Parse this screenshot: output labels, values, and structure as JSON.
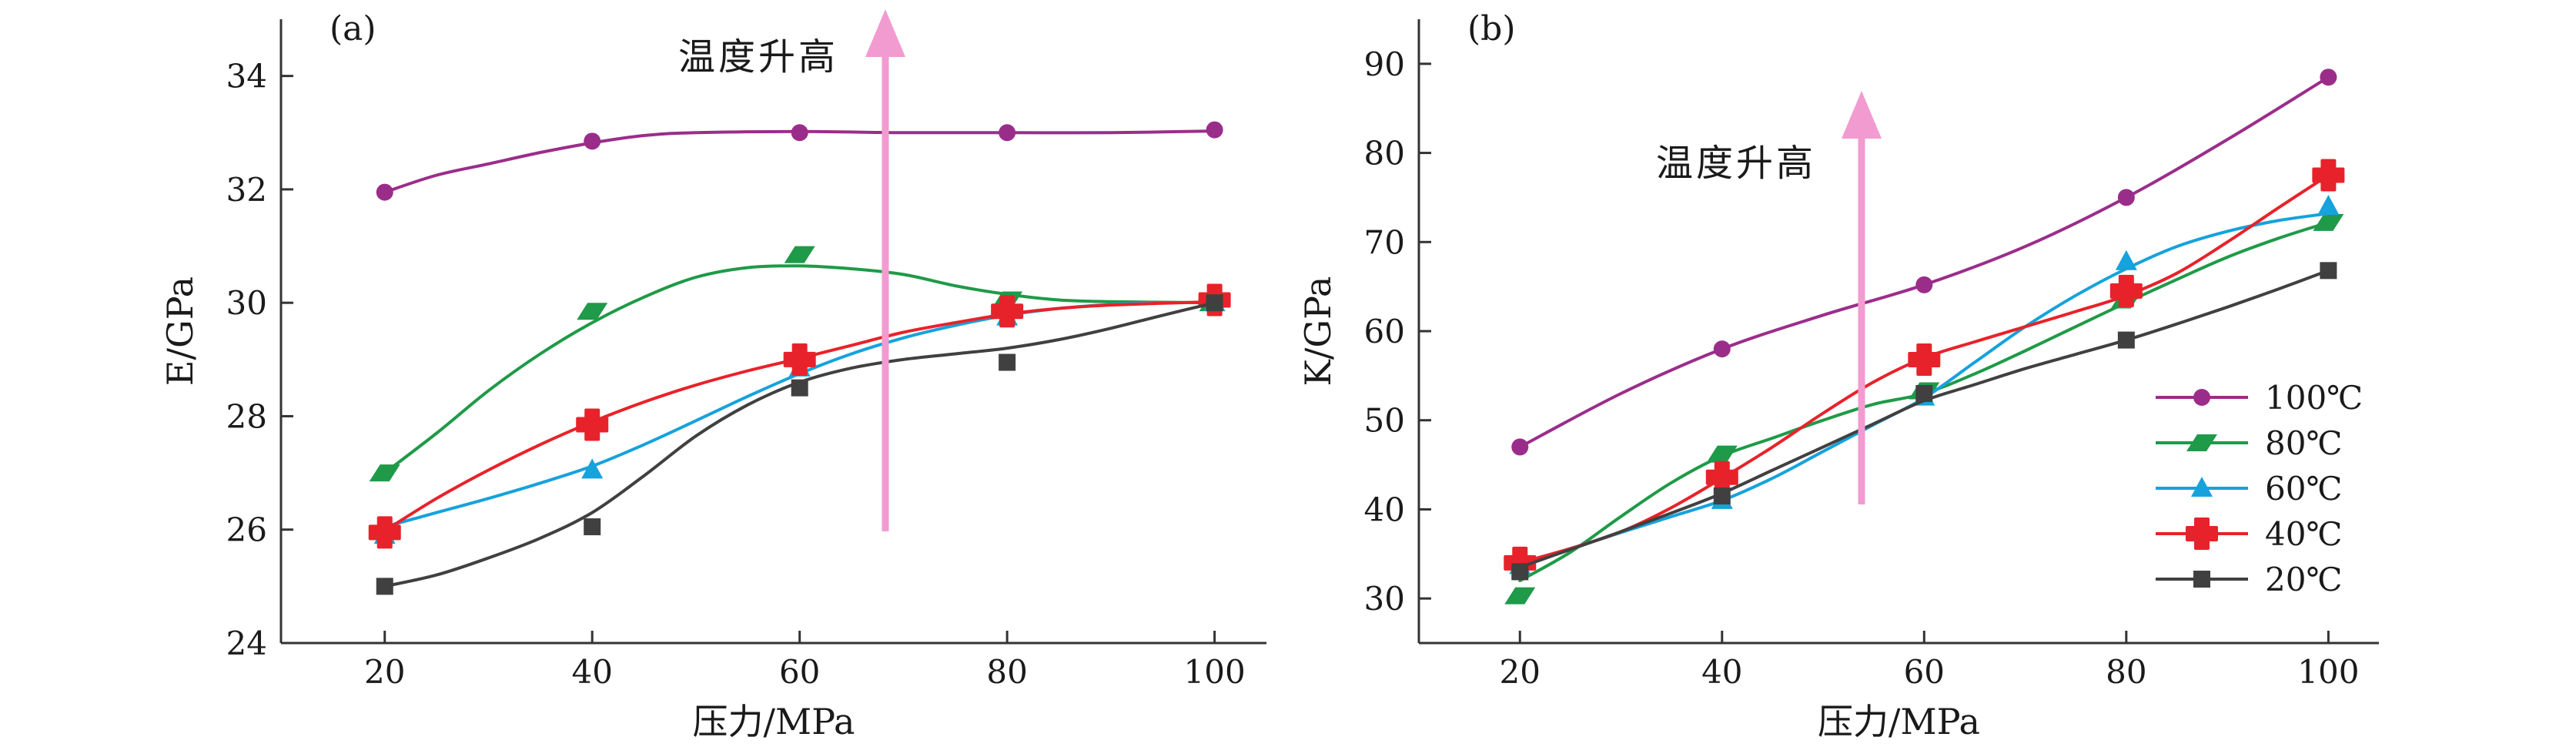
{
  "chart_data": [
    {
      "type": "line",
      "panel_label": "(a)",
      "xlabel": "压力/MPa",
      "ylabel": "E/GPa",
      "xlim": [
        10,
        105
      ],
      "ylim": [
        24,
        35
      ],
      "xticks": [
        20,
        40,
        60,
        80,
        100
      ],
      "yticks": [
        24,
        26,
        28,
        30,
        32,
        34
      ],
      "grid": false,
      "annotation": "温度升高",
      "series": [
        {
          "name": "100℃",
          "color": "#9b2d8a",
          "marker": "circle",
          "points": [
            [
              20,
              31.95
            ],
            [
              40,
              32.85
            ],
            [
              60,
              33.0
            ],
            [
              80,
              33.0
            ],
            [
              100,
              33.05
            ]
          ],
          "fit": [
            [
              20,
              31.95
            ],
            [
              25,
              32.25
            ],
            [
              30,
              32.45
            ],
            [
              35,
              32.65
            ],
            [
              40,
              32.82
            ],
            [
              45,
              32.95
            ],
            [
              50,
              33.0
            ],
            [
              60,
              33.02
            ],
            [
              70,
              33.0
            ],
            [
              80,
              33.0
            ],
            [
              90,
              33.0
            ],
            [
              100,
              33.03
            ]
          ]
        },
        {
          "name": "80℃",
          "color": "#1f9a48",
          "marker": "parallelogram",
          "points": [
            [
              20,
              27.0
            ],
            [
              40,
              29.85
            ],
            [
              60,
              30.85
            ],
            [
              80,
              30.05
            ],
            [
              100,
              30.0
            ]
          ],
          "fit": [
            [
              20,
              27.0
            ],
            [
              25,
              27.7
            ],
            [
              30,
              28.45
            ],
            [
              35,
              29.1
            ],
            [
              40,
              29.65
            ],
            [
              45,
              30.1
            ],
            [
              50,
              30.45
            ],
            [
              55,
              30.62
            ],
            [
              60,
              30.65
            ],
            [
              65,
              30.6
            ],
            [
              70,
              30.5
            ],
            [
              75,
              30.3
            ],
            [
              80,
              30.15
            ],
            [
              85,
              30.05
            ],
            [
              90,
              30.02
            ],
            [
              100,
              30.0
            ]
          ]
        },
        {
          "name": "60℃",
          "color": "#16a2dc",
          "marker": "triangle",
          "points": [
            [
              20,
              25.9
            ],
            [
              40,
              27.05
            ],
            [
              60,
              28.85
            ],
            [
              80,
              29.75
            ],
            [
              100,
              30.0
            ]
          ],
          "fit": [
            [
              20,
              26.05
            ],
            [
              25,
              26.3
            ],
            [
              30,
              26.55
            ],
            [
              35,
              26.82
            ],
            [
              40,
              27.12
            ],
            [
              45,
              27.5
            ],
            [
              50,
              27.92
            ],
            [
              55,
              28.35
            ],
            [
              60,
              28.75
            ],
            [
              65,
              29.1
            ],
            [
              70,
              29.38
            ],
            [
              75,
              29.6
            ],
            [
              80,
              29.78
            ],
            [
              85,
              29.9
            ],
            [
              90,
              29.97
            ],
            [
              94,
              30.0
            ]
          ]
        },
        {
          "name": "40℃",
          "color": "#e8222a",
          "marker": "cross",
          "points": [
            [
              20,
              25.95
            ],
            [
              40,
              27.85
            ],
            [
              60,
              29.0
            ],
            [
              80,
              29.85
            ],
            [
              100,
              30.05
            ]
          ],
          "fit": [
            [
              20,
              25.98
            ],
            [
              25,
              26.55
            ],
            [
              30,
              27.05
            ],
            [
              35,
              27.5
            ],
            [
              40,
              27.9
            ],
            [
              45,
              28.25
            ],
            [
              50,
              28.55
            ],
            [
              55,
              28.8
            ],
            [
              60,
              29.02
            ],
            [
              65,
              29.25
            ],
            [
              70,
              29.48
            ],
            [
              75,
              29.65
            ],
            [
              80,
              29.8
            ],
            [
              85,
              29.9
            ],
            [
              90,
              29.96
            ],
            [
              100,
              30.02
            ]
          ]
        },
        {
          "name": "20℃",
          "color": "#404040",
          "marker": "square",
          "points": [
            [
              20,
              25.0
            ],
            [
              40,
              26.05
            ],
            [
              60,
              28.5
            ],
            [
              80,
              28.95
            ],
            [
              100,
              30.0
            ]
          ],
          "fit": [
            [
              20,
              25.0
            ],
            [
              25,
              25.2
            ],
            [
              30,
              25.5
            ],
            [
              35,
              25.85
            ],
            [
              40,
              26.3
            ],
            [
              45,
              26.95
            ],
            [
              50,
              27.65
            ],
            [
              55,
              28.2
            ],
            [
              60,
              28.6
            ],
            [
              65,
              28.85
            ],
            [
              70,
              29.0
            ],
            [
              75,
              29.1
            ],
            [
              80,
              29.2
            ],
            [
              85,
              29.35
            ],
            [
              90,
              29.55
            ],
            [
              95,
              29.78
            ],
            [
              100,
              30.0
            ]
          ]
        }
      ]
    },
    {
      "type": "line",
      "panel_label": "(b)",
      "xlabel": "压力/MPa",
      "ylabel": "K/GPa",
      "xlim": [
        10,
        105
      ],
      "ylim": [
        25,
        95
      ],
      "xticks": [
        20,
        40,
        60,
        80,
        100
      ],
      "yticks": [
        30,
        40,
        50,
        60,
        70,
        80,
        90
      ],
      "grid": false,
      "annotation": "温度升高",
      "legend": {
        "position": "right",
        "entries": [
          {
            "name": "100℃",
            "color": "#9b2d8a",
            "marker": "circle"
          },
          {
            "name": "80℃",
            "color": "#1f9a48",
            "marker": "parallelogram"
          },
          {
            "name": "60℃",
            "color": "#16a2dc",
            "marker": "triangle"
          },
          {
            "name": "40℃",
            "color": "#e8222a",
            "marker": "cross"
          },
          {
            "name": "20℃",
            "color": "#404040",
            "marker": "square"
          }
        ]
      },
      "series": [
        {
          "name": "100℃",
          "color": "#9b2d8a",
          "marker": "circle",
          "points": [
            [
              20,
              47.0
            ],
            [
              40,
              58.0
            ],
            [
              60,
              65.2
            ],
            [
              80,
              75.0
            ],
            [
              100,
              88.5
            ]
          ],
          "fit": [
            [
              20,
              47.0
            ],
            [
              30,
              53.0
            ],
            [
              40,
              58.0
            ],
            [
              50,
              61.8
            ],
            [
              60,
              65.2
            ],
            [
              70,
              69.5
            ],
            [
              80,
              75.0
            ],
            [
              90,
              81.5
            ],
            [
              100,
              88.5
            ]
          ]
        },
        {
          "name": "80℃",
          "color": "#1f9a48",
          "marker": "parallelogram",
          "points": [
            [
              20,
              30.3
            ],
            [
              40,
              46.2
            ],
            [
              60,
              53.3
            ],
            [
              80,
              63.5
            ],
            [
              100,
              72.2
            ]
          ],
          "fit": [
            [
              20,
              32.0
            ],
            [
              25,
              35.2
            ],
            [
              30,
              39.2
            ],
            [
              35,
              43.0
            ],
            [
              40,
              46.0
            ],
            [
              45,
              48.0
            ],
            [
              50,
              50.0
            ],
            [
              55,
              51.8
            ],
            [
              60,
              53.0
            ],
            [
              65,
              55.2
            ],
            [
              70,
              57.8
            ],
            [
              75,
              60.5
            ],
            [
              80,
              63.2
            ],
            [
              85,
              65.8
            ],
            [
              90,
              68.3
            ],
            [
              95,
              70.4
            ],
            [
              100,
              72.2
            ]
          ]
        },
        {
          "name": "60℃",
          "color": "#16a2dc",
          "marker": "triangle",
          "points": [
            [
              20,
              33.7
            ],
            [
              40,
              41.0
            ],
            [
              60,
              52.6
            ],
            [
              80,
              67.8
            ],
            [
              100,
              74.0
            ]
          ],
          "fit": [
            [
              20,
              34.0
            ],
            [
              25,
              35.6
            ],
            [
              30,
              37.4
            ],
            [
              35,
              39.2
            ],
            [
              40,
              41.0
            ],
            [
              45,
              43.5
            ],
            [
              50,
              46.5
            ],
            [
              55,
              49.5
            ],
            [
              60,
              52.5
            ],
            [
              65,
              56.5
            ],
            [
              70,
              60.5
            ],
            [
              75,
              64.0
            ],
            [
              80,
              67.0
            ],
            [
              85,
              69.5
            ],
            [
              90,
              71.2
            ],
            [
              95,
              72.4
            ],
            [
              100,
              73.2
            ]
          ]
        },
        {
          "name": "40℃",
          "color": "#e8222a",
          "marker": "cross",
          "points": [
            [
              20,
              34.0
            ],
            [
              40,
              43.6
            ],
            [
              60,
              56.8
            ],
            [
              80,
              64.5
            ],
            [
              100,
              77.5
            ]
          ],
          "fit": [
            [
              20,
              34.0
            ],
            [
              25,
              35.6
            ],
            [
              30,
              37.5
            ],
            [
              35,
              40.2
            ],
            [
              40,
              43.5
            ],
            [
              45,
              47.0
            ],
            [
              50,
              50.8
            ],
            [
              55,
              54.3
            ],
            [
              60,
              57.0
            ],
            [
              65,
              58.8
            ],
            [
              70,
              60.5
            ],
            [
              75,
              62.2
            ],
            [
              80,
              64.0
            ],
            [
              85,
              66.5
            ],
            [
              90,
              70.0
            ],
            [
              95,
              73.8
            ],
            [
              100,
              77.5
            ]
          ]
        },
        {
          "name": "20℃",
          "color": "#404040",
          "marker": "square",
          "points": [
            [
              20,
              33.0
            ],
            [
              40,
              41.5
            ],
            [
              60,
              53.0
            ],
            [
              80,
              59.0
            ],
            [
              100,
              66.8
            ]
          ],
          "fit": [
            [
              20,
              33.5
            ],
            [
              25,
              35.5
            ],
            [
              30,
              37.5
            ],
            [
              35,
              39.6
            ],
            [
              40,
              41.8
            ],
            [
              45,
              44.4
            ],
            [
              50,
              47.0
            ],
            [
              55,
              49.6
            ],
            [
              60,
              52.2
            ],
            [
              65,
              54.0
            ],
            [
              70,
              55.8
            ],
            [
              75,
              57.4
            ],
            [
              80,
              59.0
            ],
            [
              85,
              60.8
            ],
            [
              90,
              62.7
            ],
            [
              95,
              64.7
            ],
            [
              100,
              66.8
            ]
          ]
        }
      ]
    }
  ]
}
